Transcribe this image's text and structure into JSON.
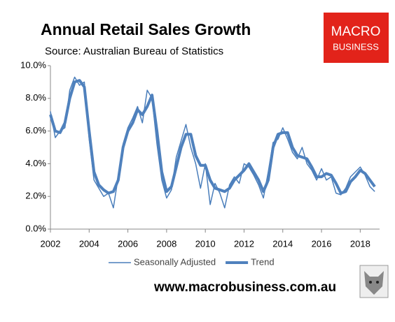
{
  "chart_data": {
    "type": "line",
    "title": "Annual Retail Sales Growth",
    "subtitle": "Source: Australian Bureau of Statistics",
    "x": [
      2002,
      2002.25,
      2002.5,
      2002.75,
      2003,
      2003.25,
      2003.5,
      2003.75,
      2004,
      2004.25,
      2004.5,
      2004.75,
      2005,
      2005.25,
      2005.5,
      2005.75,
      2006,
      2006.25,
      2006.5,
      2006.75,
      2007,
      2007.25,
      2007.5,
      2007.75,
      2008,
      2008.25,
      2008.5,
      2008.75,
      2009,
      2009.25,
      2009.5,
      2009.75,
      2010,
      2010.25,
      2010.5,
      2010.75,
      2011,
      2011.25,
      2011.5,
      2011.75,
      2012,
      2012.25,
      2012.5,
      2012.75,
      2013,
      2013.25,
      2013.5,
      2013.75,
      2014,
      2014.25,
      2014.5,
      2014.75,
      2015,
      2015.25,
      2015.5,
      2015.75,
      2016,
      2016.25,
      2016.5,
      2016.75,
      2017,
      2017.25,
      2017.5,
      2017.75,
      2018,
      2018.25,
      2018.5,
      2018.75
    ],
    "series": [
      {
        "name": "Seasonally Adjusted",
        "color": "#4a7ebb",
        "width": 1.5,
        "values": [
          7.2,
          5.6,
          6.0,
          6.2,
          8.5,
          9.3,
          8.8,
          9.0,
          5.5,
          3.0,
          2.5,
          2.0,
          2.2,
          1.3,
          3.2,
          5.2,
          6.2,
          6.8,
          7.5,
          6.5,
          8.5,
          8.0,
          5.2,
          3.0,
          1.9,
          2.4,
          4.4,
          5.4,
          6.4,
          5.0,
          4.0,
          2.5,
          4.0,
          1.5,
          2.8,
          2.2,
          1.3,
          2.7,
          3.2,
          2.8,
          4.0,
          3.8,
          3.3,
          2.7,
          1.9,
          3.5,
          5.3,
          5.5,
          6.2,
          5.5,
          4.7,
          4.3,
          5.0,
          4.0,
          3.6,
          3.0,
          3.7,
          3.0,
          3.2,
          2.2,
          2.1,
          2.5,
          3.2,
          3.5,
          3.8,
          3.3,
          2.6,
          2.3
        ]
      },
      {
        "name": "Trend",
        "color": "#4f81bd",
        "width": 4,
        "values": [
          7.0,
          6.0,
          5.9,
          6.5,
          8.0,
          9.0,
          9.1,
          8.7,
          6.0,
          3.5,
          2.7,
          2.4,
          2.2,
          2.3,
          3.0,
          5.0,
          6.0,
          6.5,
          7.3,
          7.0,
          7.5,
          8.2,
          6.0,
          3.5,
          2.3,
          2.6,
          3.8,
          5.0,
          5.8,
          5.8,
          4.5,
          3.9,
          3.9,
          3.0,
          2.5,
          2.4,
          2.3,
          2.5,
          3.0,
          3.3,
          3.6,
          4.0,
          3.5,
          3.0,
          2.3,
          3.0,
          5.0,
          5.8,
          5.9,
          5.9,
          5.0,
          4.5,
          4.4,
          4.3,
          3.8,
          3.2,
          3.2,
          3.4,
          3.3,
          2.8,
          2.2,
          2.3,
          2.9,
          3.2,
          3.6,
          3.4,
          3.0,
          2.6
        ]
      }
    ],
    "xlim": [
      2002,
      2019
    ],
    "xticks": [
      2002,
      2004,
      2006,
      2008,
      2010,
      2012,
      2014,
      2016,
      2018
    ],
    "ylim": [
      0,
      10
    ],
    "yticks": [
      {
        "value": 0,
        "label": "0.0%"
      },
      {
        "value": 2,
        "label": "2.0%"
      },
      {
        "value": 4,
        "label": "4.0%"
      },
      {
        "value": 6,
        "label": "6.0%"
      },
      {
        "value": 8,
        "label": "8.0%"
      },
      {
        "value": 10,
        "label": "10.0%"
      }
    ],
    "grid": false,
    "legend": "bottom"
  },
  "logo": {
    "line1": "MACRO",
    "line2": "BUSINESS"
  },
  "website": "www.macrobusiness.com.au"
}
